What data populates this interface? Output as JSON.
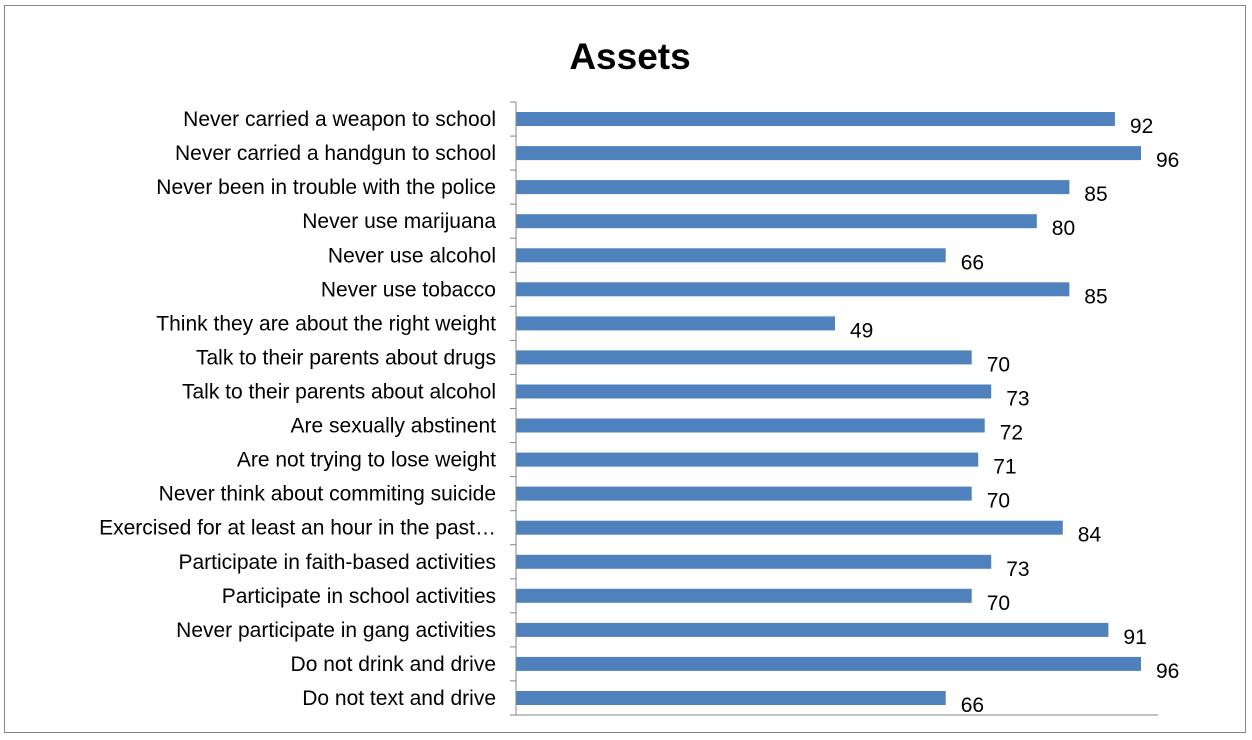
{
  "chart_data": {
    "type": "bar",
    "orientation": "horizontal",
    "title": "Assets",
    "categories": [
      "Never carried a weapon to school",
      "Never carried a handgun to school",
      "Never been in trouble with the police",
      "Never use marijuana",
      "Never use alcohol",
      "Never use tobacco",
      "Think they are about the right weight",
      "Talk to their parents about drugs",
      "Talk to their parents about alcohol",
      "Are sexually abstinent",
      "Are not trying to lose weight",
      "Never think about commiting suicide",
      "Exercised for at least an hour in the past…",
      "Participate in faith-based activities",
      "Participate in school activities",
      "Never participate in gang activities",
      "Do not drink and drive",
      "Do not text and drive"
    ],
    "values": [
      92,
      96,
      85,
      80,
      66,
      85,
      49,
      70,
      73,
      72,
      71,
      70,
      84,
      73,
      70,
      91,
      96,
      66
    ],
    "data_labels": [
      "92",
      "96",
      "85",
      "80",
      "66",
      "85",
      "49",
      "70",
      "73",
      "72",
      "71",
      "70",
      "84",
      "73",
      "70",
      "91",
      "96",
      "66"
    ],
    "xlim": [
      0,
      100
    ],
    "grid": false,
    "legend": "none",
    "bar_color": "#4f81bd",
    "axis_color": "#868686"
  }
}
